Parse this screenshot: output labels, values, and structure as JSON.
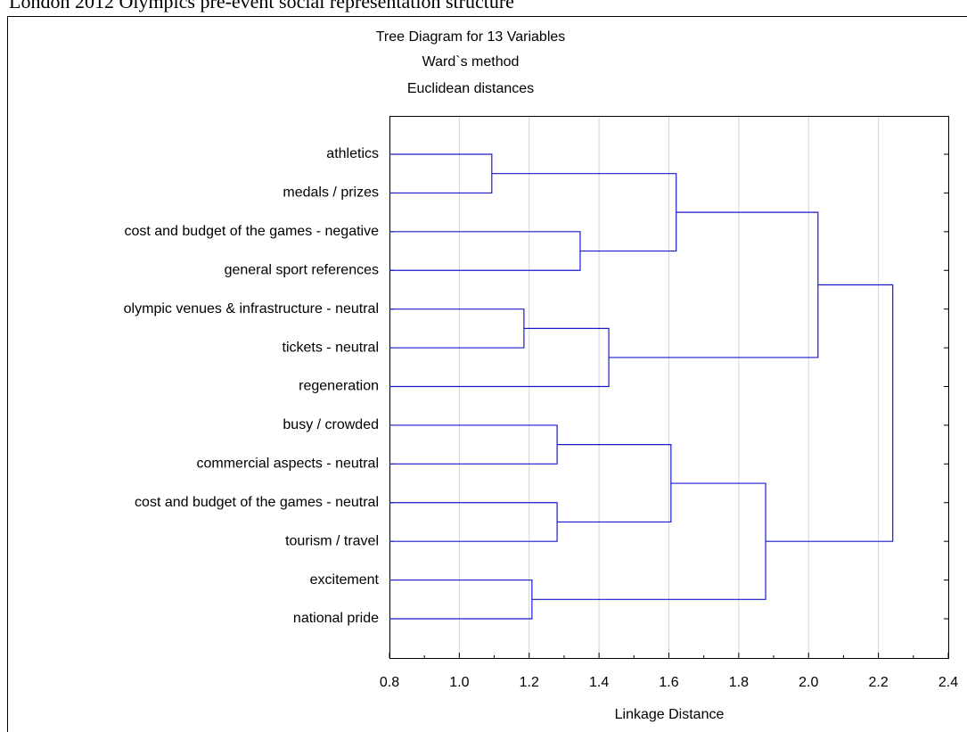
{
  "header": "London 2012 Olympics pre-event social representation structure",
  "chart_data": {
    "type": "dendrogram",
    "title": [
      "Tree Diagram for 13  Variables",
      "Ward`s method",
      "Euclidean distances"
    ],
    "x_label": "Linkage Distance",
    "leaves": [
      "athletics",
      "medals / prizes",
      "cost and budget of the games - negative",
      "general sport references",
      "olympic venues & infrastructure - neutral",
      "tickets - neutral",
      "regeneration",
      "busy / crowded",
      "commercial aspects - neutral",
      "cost and budget of the games - neutral",
      "tourism / travel",
      "excitement",
      "national pride"
    ],
    "merges": [
      {
        "children": [
          0,
          1
        ],
        "distance": 1.093
      },
      {
        "children": [
          2,
          3
        ],
        "distance": 1.346
      },
      {
        "children": [
          13,
          14
        ],
        "distance": 1.621
      },
      {
        "children": [
          4,
          5
        ],
        "distance": 1.185
      },
      {
        "children": [
          16,
          6
        ],
        "distance": 1.428
      },
      {
        "children": [
          15,
          17
        ],
        "distance": 2.027
      },
      {
        "children": [
          7,
          8
        ],
        "distance": 1.28
      },
      {
        "children": [
          9,
          10
        ],
        "distance": 1.28
      },
      {
        "children": [
          19,
          20
        ],
        "distance": 1.606
      },
      {
        "children": [
          11,
          12
        ],
        "distance": 1.208
      },
      {
        "children": [
          21,
          22
        ],
        "distance": 1.877
      },
      {
        "children": [
          18,
          23
        ],
        "distance": 2.241
      }
    ],
    "color": "#1a1acc",
    "xlim": [
      0.8,
      2.4
    ],
    "xticks": [
      0.8,
      {
        "value": 1,
        "label": "1.0"
      },
      1.2,
      1.4,
      1.6,
      1.8,
      {
        "value": 2,
        "label": "2.0"
      },
      2.2,
      2.4
    ],
    "grid": true
  }
}
